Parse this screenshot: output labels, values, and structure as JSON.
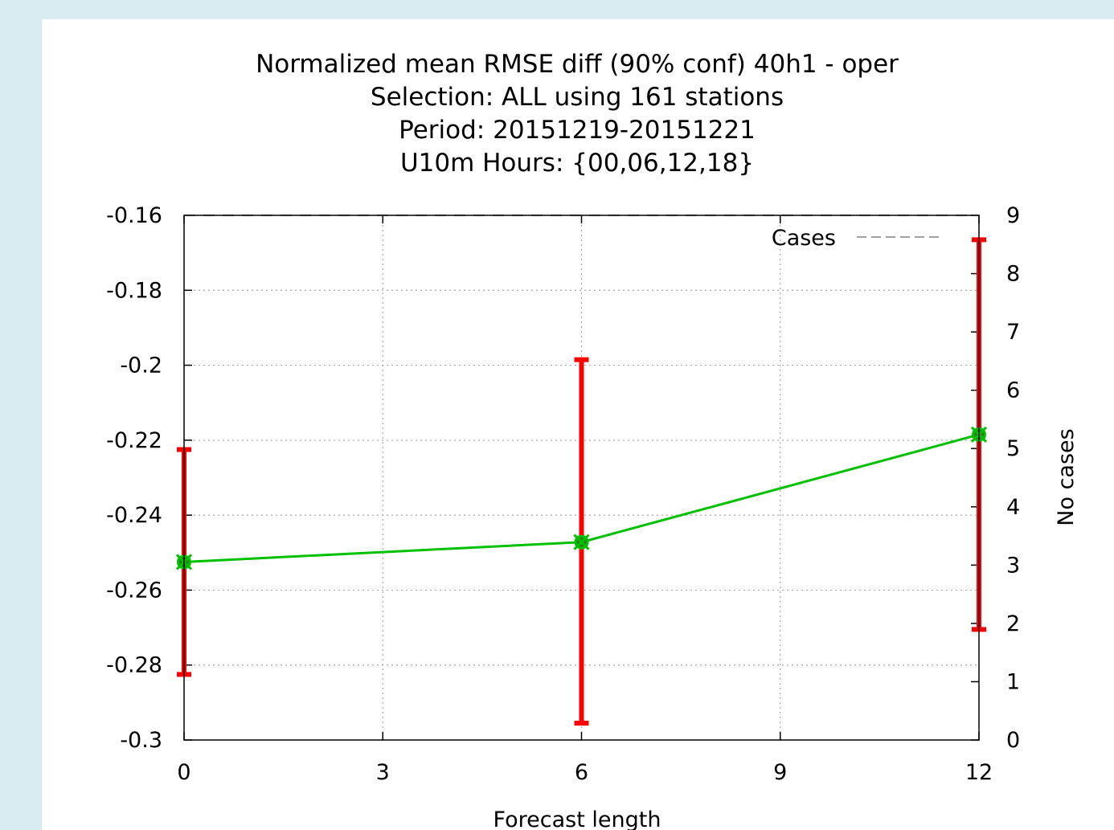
{
  "chart_data": {
    "type": "line",
    "title": [
      "Normalized mean RMSE diff (90% conf) 40h1 - oper",
      "Selection: ALL using   161 stations",
      "Period: 20151219-20151221",
      "U10m   Hours: {00,06,12,18}"
    ],
    "xlabel": "Forecast length",
    "ylabel": "",
    "y2label": "No cases",
    "xlim": [
      0,
      12
    ],
    "ylim": [
      -0.3,
      -0.16
    ],
    "y2lim": [
      0,
      9
    ],
    "xticks": [
      "0",
      "3",
      "6",
      "9",
      "12"
    ],
    "yticks": [
      "-0.3",
      "-0.28",
      "-0.26",
      "-0.24",
      "-0.22",
      "-0.2",
      "-0.18",
      "-0.16"
    ],
    "y2ticks": [
      "0",
      "1",
      "2",
      "3",
      "4",
      "5",
      "6",
      "7",
      "8",
      "9"
    ],
    "grid": true,
    "series": [
      {
        "name": "",
        "color": "#00c000",
        "x": [
          0,
          6,
          12
        ],
        "y": [
          -0.2525,
          -0.2472,
          -0.2185
        ],
        "err_low": [
          -0.2825,
          -0.2955,
          -0.2705
        ],
        "err_high": [
          -0.2225,
          -0.1985,
          -0.1665
        ],
        "err_color": "#ff0000"
      },
      {
        "name": "Cases",
        "color": "#a0a0a0",
        "axis": "y2",
        "x": [
          0,
          6,
          12
        ],
        "y": [
          9,
          9,
          9
        ]
      }
    ],
    "legend": {
      "position": "top-right"
    }
  }
}
